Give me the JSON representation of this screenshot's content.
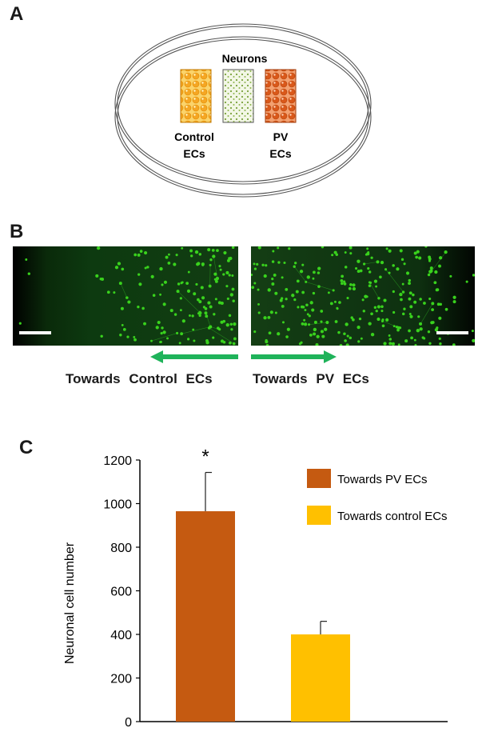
{
  "panels": {
    "a": "A",
    "b": "B",
    "c": "C"
  },
  "panel_a": {
    "neurons_label": "Neurons",
    "control_label_line1": "Control",
    "control_label_line2": "ECs",
    "pv_label_line1": "PV",
    "pv_label_line2": "ECs",
    "colors": {
      "control": "#f5a623",
      "neurons": "#8bb34a",
      "pv": "#d9581a"
    }
  },
  "panel_b": {
    "left_label": "Towards Control ECs",
    "right_label": "Towards PV ECs",
    "arrow_color": "#1fb35a",
    "cell_color": "#39d21d"
  },
  "chart_data": {
    "type": "bar",
    "categories": [
      "Towards PV ECs",
      "Towards control ECs"
    ],
    "values": [
      965,
      400
    ],
    "errors": [
      178,
      60
    ],
    "colors": [
      "#c55a11",
      "#ffc000"
    ],
    "ylabel": "Neuronal cell number",
    "ylim": [
      0,
      1200
    ],
    "yticks": [
      0,
      200,
      400,
      600,
      800,
      1000,
      1200
    ],
    "grid": false,
    "legend": [
      "Towards PV ECs",
      "Towards control ECs"
    ],
    "legend_position": "top-right",
    "significance_marker": "*"
  }
}
